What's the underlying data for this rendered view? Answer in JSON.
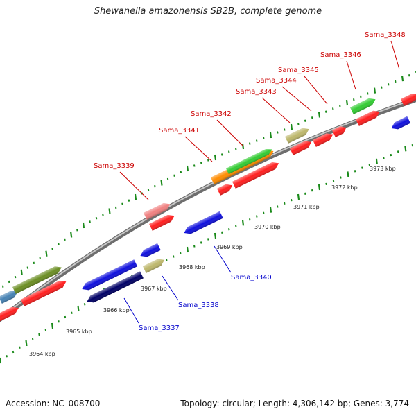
{
  "title": "Shewanella amazonensis SB2B, complete genome",
  "footer": {
    "accession": "Accession: NC_008700",
    "topology": "Topology: circular; Length: 4,306,142 bp; Genes: 3,774"
  },
  "colors": {
    "backbone": "#8c8c8c",
    "tick": "#1a8a1a",
    "label_forward": "#cc0000",
    "label_reverse": "#0000cc"
  },
  "scale": {
    "ticks": [
      {
        "kbp": 3964,
        "label": "3964 kbp"
      },
      {
        "kbp": 3965,
        "label": "3965 kbp"
      },
      {
        "kbp": 3966,
        "label": "3966 kbp"
      },
      {
        "kbp": 3967,
        "label": "3967 kbp"
      },
      {
        "kbp": 3968,
        "label": "3968 kbp"
      },
      {
        "kbp": 3969,
        "label": "3969 kbp"
      },
      {
        "kbp": 3970,
        "label": "3970 kbp"
      },
      {
        "kbp": 3971,
        "label": "3971 kbp"
      },
      {
        "kbp": 3972,
        "label": "3972 kbp"
      },
      {
        "kbp": 3973,
        "label": "3973 kbp"
      }
    ]
  },
  "gene_labels": [
    {
      "name": "Sama_3337",
      "strand": "reverse"
    },
    {
      "name": "Sama_3338",
      "strand": "reverse"
    },
    {
      "name": "Sama_3339",
      "strand": "forward"
    },
    {
      "name": "Sama_3340",
      "strand": "reverse"
    },
    {
      "name": "Sama_3341",
      "strand": "forward"
    },
    {
      "name": "Sama_3342",
      "strand": "forward"
    },
    {
      "name": "Sama_3343",
      "strand": "forward"
    },
    {
      "name": "Sama_3344",
      "strand": "forward"
    },
    {
      "name": "Sama_3345",
      "strand": "forward"
    },
    {
      "name": "Sama_3346",
      "strand": "forward"
    },
    {
      "name": "Sama_3348",
      "strand": "forward"
    }
  ]
}
